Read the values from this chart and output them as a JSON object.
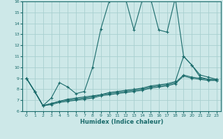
{
  "background_color": "#cde8e8",
  "grid_color": "#a8d0d0",
  "line_color": "#1a6b6b",
  "xlabel": "Humidex (Indice chaleur)",
  "xlim": [
    -0.5,
    23.5
  ],
  "ylim": [
    6,
    16
  ],
  "xticks": [
    0,
    1,
    2,
    3,
    4,
    5,
    6,
    7,
    8,
    9,
    10,
    11,
    12,
    13,
    14,
    15,
    16,
    17,
    18,
    19,
    20,
    21,
    22,
    23
  ],
  "yticks": [
    6,
    7,
    8,
    9,
    10,
    11,
    12,
    13,
    14,
    15,
    16
  ],
  "line1_x": [
    0,
    1,
    2,
    3,
    4,
    5,
    6,
    7,
    8,
    9,
    10,
    11,
    12,
    13,
    14,
    15,
    16,
    17,
    18,
    19,
    20,
    21,
    22,
    23
  ],
  "line1_y": [
    9.0,
    7.8,
    6.5,
    7.2,
    8.6,
    8.2,
    7.6,
    7.8,
    10.0,
    13.5,
    16.0,
    16.1,
    16.2,
    13.4,
    16.1,
    16.3,
    13.4,
    13.2,
    16.3,
    11.0,
    10.2,
    9.3,
    9.1,
    8.9
  ],
  "line2_x": [
    0,
    1,
    2,
    3,
    4,
    5,
    6,
    7,
    8,
    9,
    10,
    11,
    12,
    13,
    14,
    15,
    16,
    17,
    18,
    19,
    20,
    21,
    22,
    23
  ],
  "line2_y": [
    9.0,
    7.8,
    6.5,
    6.7,
    6.9,
    7.1,
    7.2,
    7.3,
    7.4,
    7.5,
    7.7,
    7.8,
    7.9,
    8.0,
    8.1,
    8.3,
    8.4,
    8.5,
    8.7,
    11.0,
    10.2,
    9.1,
    8.9,
    8.8
  ],
  "line3_x": [
    0,
    1,
    2,
    3,
    4,
    5,
    6,
    7,
    8,
    9,
    10,
    11,
    12,
    13,
    14,
    15,
    16,
    17,
    18,
    19,
    20,
    21,
    22,
    23
  ],
  "line3_y": [
    9.0,
    7.8,
    6.5,
    6.7,
    6.9,
    7.0,
    7.1,
    7.2,
    7.3,
    7.5,
    7.6,
    7.7,
    7.8,
    7.9,
    8.0,
    8.2,
    8.3,
    8.4,
    8.6,
    9.3,
    9.1,
    9.0,
    8.9,
    8.9
  ],
  "line4_x": [
    0,
    1,
    2,
    3,
    4,
    5,
    6,
    7,
    8,
    9,
    10,
    11,
    12,
    13,
    14,
    15,
    16,
    17,
    18,
    19,
    20,
    21,
    22,
    23
  ],
  "line4_y": [
    9.0,
    7.8,
    6.5,
    6.6,
    6.8,
    6.9,
    7.0,
    7.1,
    7.2,
    7.4,
    7.5,
    7.6,
    7.7,
    7.8,
    7.9,
    8.1,
    8.2,
    8.3,
    8.5,
    9.2,
    9.0,
    8.9,
    8.8,
    8.8
  ]
}
